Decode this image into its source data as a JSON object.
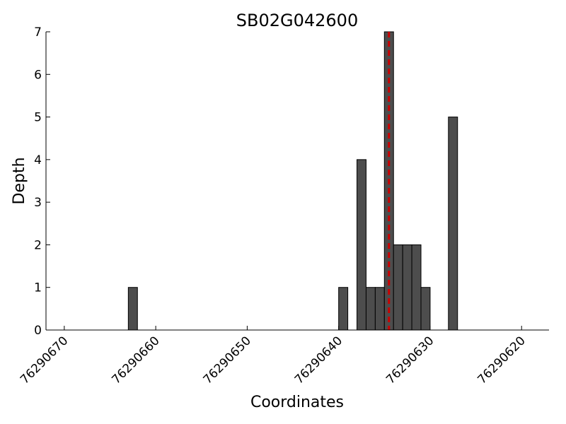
{
  "chart_data": {
    "type": "bar",
    "title": "SB02G042600",
    "x_label": "Coordinates",
    "y_label": "Depth",
    "x": [
      76290662,
      76290639,
      76290637,
      76290636,
      76290635,
      76290634,
      76290633,
      76290632,
      76290631,
      76290630,
      76290627
    ],
    "values": [
      1,
      1,
      4,
      1,
      1,
      7,
      2,
      2,
      2,
      1,
      5
    ],
    "bar_width": 1,
    "color": "#4d4d4d",
    "vline": 76290634.5,
    "vline_color": "#cc0000",
    "xlim": [
      76290672,
      76290617
    ],
    "xticks": [
      76290670,
      76290660,
      76290650,
      76290640,
      76290630,
      76290620
    ],
    "ylim": [
      0,
      7
    ],
    "yticks": [
      0,
      1,
      2,
      3,
      4,
      5,
      6,
      7
    ]
  }
}
